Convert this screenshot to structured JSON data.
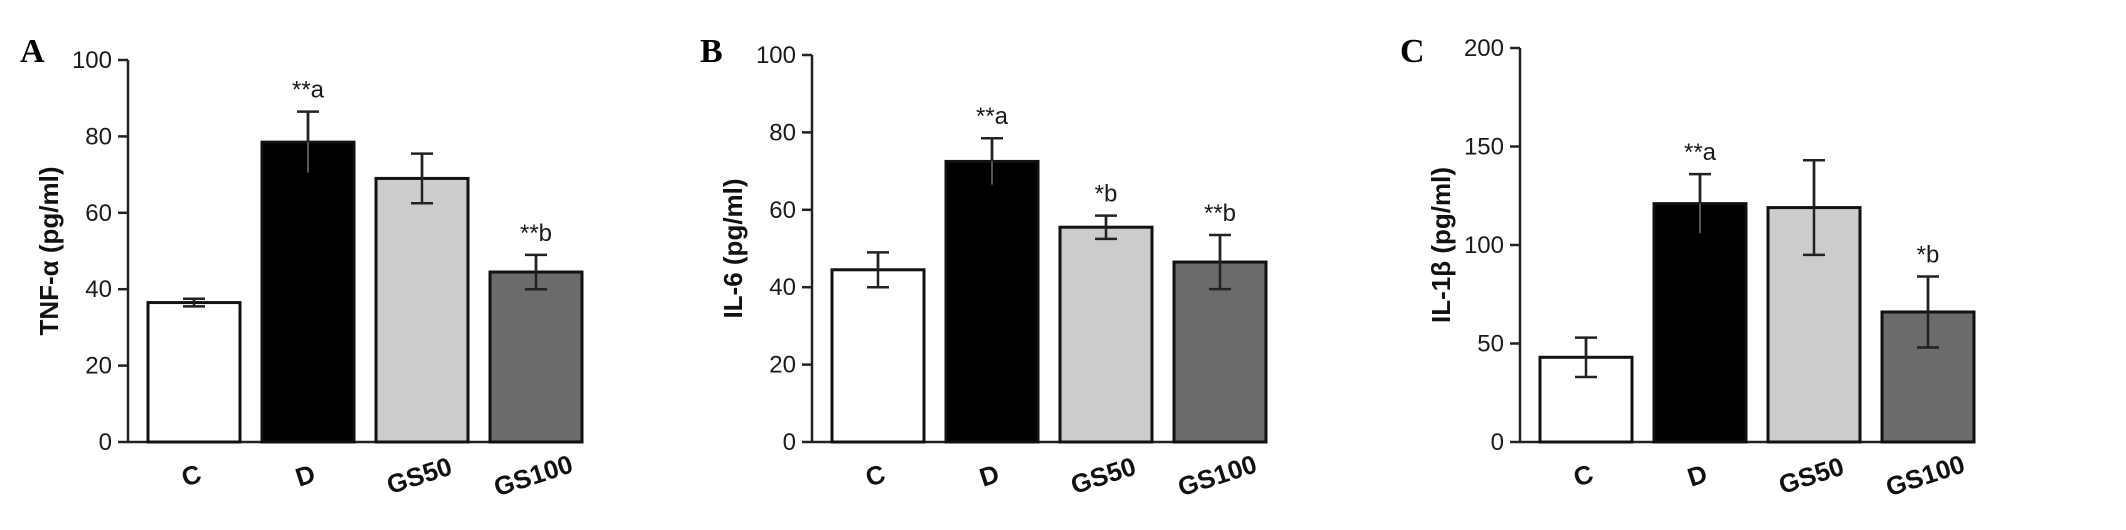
{
  "chart_data": [
    {
      "type": "bar",
      "panel": "A",
      "ylabel": "TNF-α (pg/ml)",
      "ylim": [
        0,
        100
      ],
      "yticks": [
        0,
        20,
        40,
        60,
        80,
        100
      ],
      "categories": [
        "C",
        "D",
        "GS50",
        "GS100"
      ],
      "values": [
        36.5,
        78.5,
        69,
        44.5
      ],
      "errors": [
        1,
        8,
        6.5,
        4.5
      ],
      "colors": [
        "#ffffff",
        "#000000",
        "#cccccc",
        "#6b6b6b"
      ],
      "annotations": [
        "",
        "**a",
        "",
        "**b"
      ],
      "grid": false
    },
    {
      "type": "bar",
      "panel": "B",
      "ylabel": "IL-6 (pg/ml)",
      "ylim": [
        0,
        100
      ],
      "yticks": [
        0,
        20,
        40,
        60,
        80,
        100
      ],
      "categories": [
        "C",
        "D",
        "GS50",
        "GS100"
      ],
      "values": [
        44.5,
        72.5,
        55.5,
        46.5
      ],
      "errors": [
        4.5,
        6,
        3,
        7
      ],
      "colors": [
        "#ffffff",
        "#000000",
        "#cccccc",
        "#6b6b6b"
      ],
      "annotations": [
        "",
        "**a",
        "*b",
        "**b"
      ],
      "grid": false
    },
    {
      "type": "bar",
      "panel": "C",
      "ylabel": "IL-1β (pg/ml)",
      "ylim": [
        0,
        200
      ],
      "yticks": [
        0,
        50,
        100,
        150,
        200
      ],
      "categories": [
        "C",
        "D",
        "GS50",
        "GS100"
      ],
      "values": [
        43,
        121,
        119,
        66
      ],
      "errors": [
        10,
        15,
        24,
        18
      ],
      "colors": [
        "#ffffff",
        "#000000",
        "#cccccc",
        "#6b6b6b"
      ],
      "annotations": [
        "",
        "**a",
        "",
        "*b"
      ],
      "grid": false
    }
  ]
}
